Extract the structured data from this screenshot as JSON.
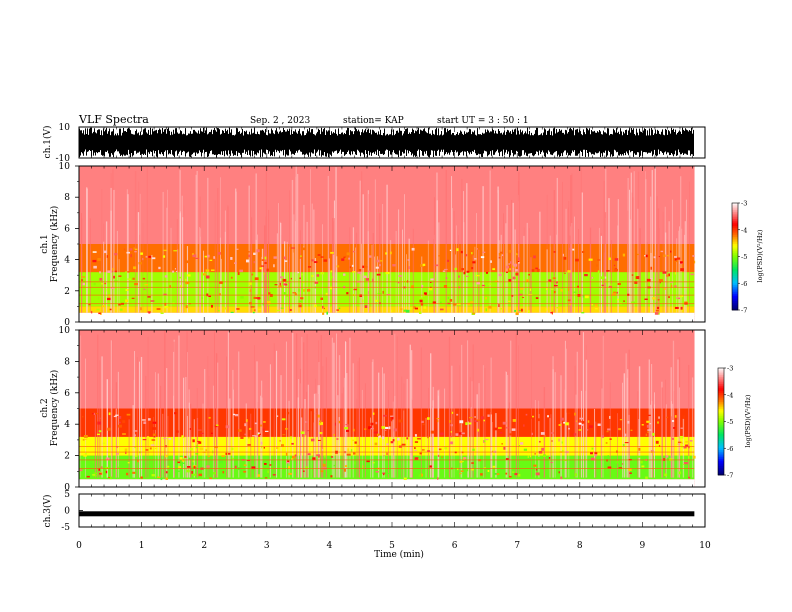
{
  "header": {
    "title": "VLF Spectra",
    "date": "Sep. 2 , 2023",
    "station": "station= KAP",
    "start": "start UT = 3 : 50 : 1"
  },
  "chart_data": [
    {
      "type": "line",
      "panel": "ch1-waveform",
      "ylabel": "ch.1(V)",
      "ylim": [
        -10,
        10
      ],
      "ytick_labels": [
        "10",
        "-10"
      ],
      "xlim": [
        0,
        10
      ],
      "data_extent_min": 9.83,
      "note_values": "dense waveform envelope filling most of the range"
    },
    {
      "type": "heatmap",
      "panel": "ch1-spectrogram",
      "ylabel_lines": [
        "ch.1",
        "Frequency (kHz)"
      ],
      "ylim": [
        0,
        10
      ],
      "ytick_labels": [
        "0",
        "2",
        "4",
        "6",
        "8",
        "10"
      ],
      "xlim": [
        0,
        10
      ],
      "colorbar": {
        "label": "log(PSD)(V²/Hz)",
        "range": [
          -7,
          -3
        ],
        "tick_labels": [
          "-3",
          "-4",
          "-5",
          "-6",
          "-7"
        ]
      },
      "bands": [
        {
          "f": [
            0.0,
            0.6
          ],
          "level": "mixed-red-white"
        },
        {
          "f": [
            0.6,
            1.0
          ],
          "level": -4.5
        },
        {
          "f": [
            1.0,
            3.2
          ],
          "level": -4.9
        },
        {
          "f": [
            3.2,
            5.0
          ],
          "level": -4.2
        },
        {
          "f": [
            5.0,
            10.0
          ],
          "level": -3.4
        }
      ]
    },
    {
      "type": "heatmap",
      "panel": "ch2-spectrogram",
      "ylabel_lines": [
        "ch.2",
        "Frequency (kHz)"
      ],
      "ylim": [
        0,
        10
      ],
      "ytick_labels": [
        "0",
        "2",
        "4",
        "6",
        "8",
        "10"
      ],
      "xlim": [
        0,
        10
      ],
      "colorbar": {
        "label": "log(PSD)(V²/Hz)",
        "range": [
          -7,
          -3
        ],
        "tick_labels": [
          "-3",
          "-4",
          "-5",
          "-6",
          "-7"
        ]
      },
      "bands": [
        {
          "f": [
            0.0,
            0.5
          ],
          "level": "mixed-red-white"
        },
        {
          "f": [
            0.5,
            2.0
          ],
          "level": -5.1
        },
        {
          "f": [
            2.0,
            3.2
          ],
          "level": -4.6
        },
        {
          "f": [
            3.2,
            5.0
          ],
          "level": -4.0
        },
        {
          "f": [
            5.0,
            10.0
          ],
          "level": -3.4
        }
      ]
    },
    {
      "type": "line",
      "panel": "ch3-waveform",
      "ylabel": "ch.3(V)",
      "ylim": [
        -5,
        5
      ],
      "ytick_labels": [
        "5",
        "0",
        "-5"
      ],
      "xlim": [
        0,
        10
      ],
      "level": -1.0,
      "data_extent_min": 9.83
    }
  ],
  "xaxis": {
    "label": "Time (min)",
    "tick_labels": [
      "0",
      "1",
      "2",
      "3",
      "4",
      "5",
      "6",
      "7",
      "8",
      "9",
      "10"
    ]
  }
}
